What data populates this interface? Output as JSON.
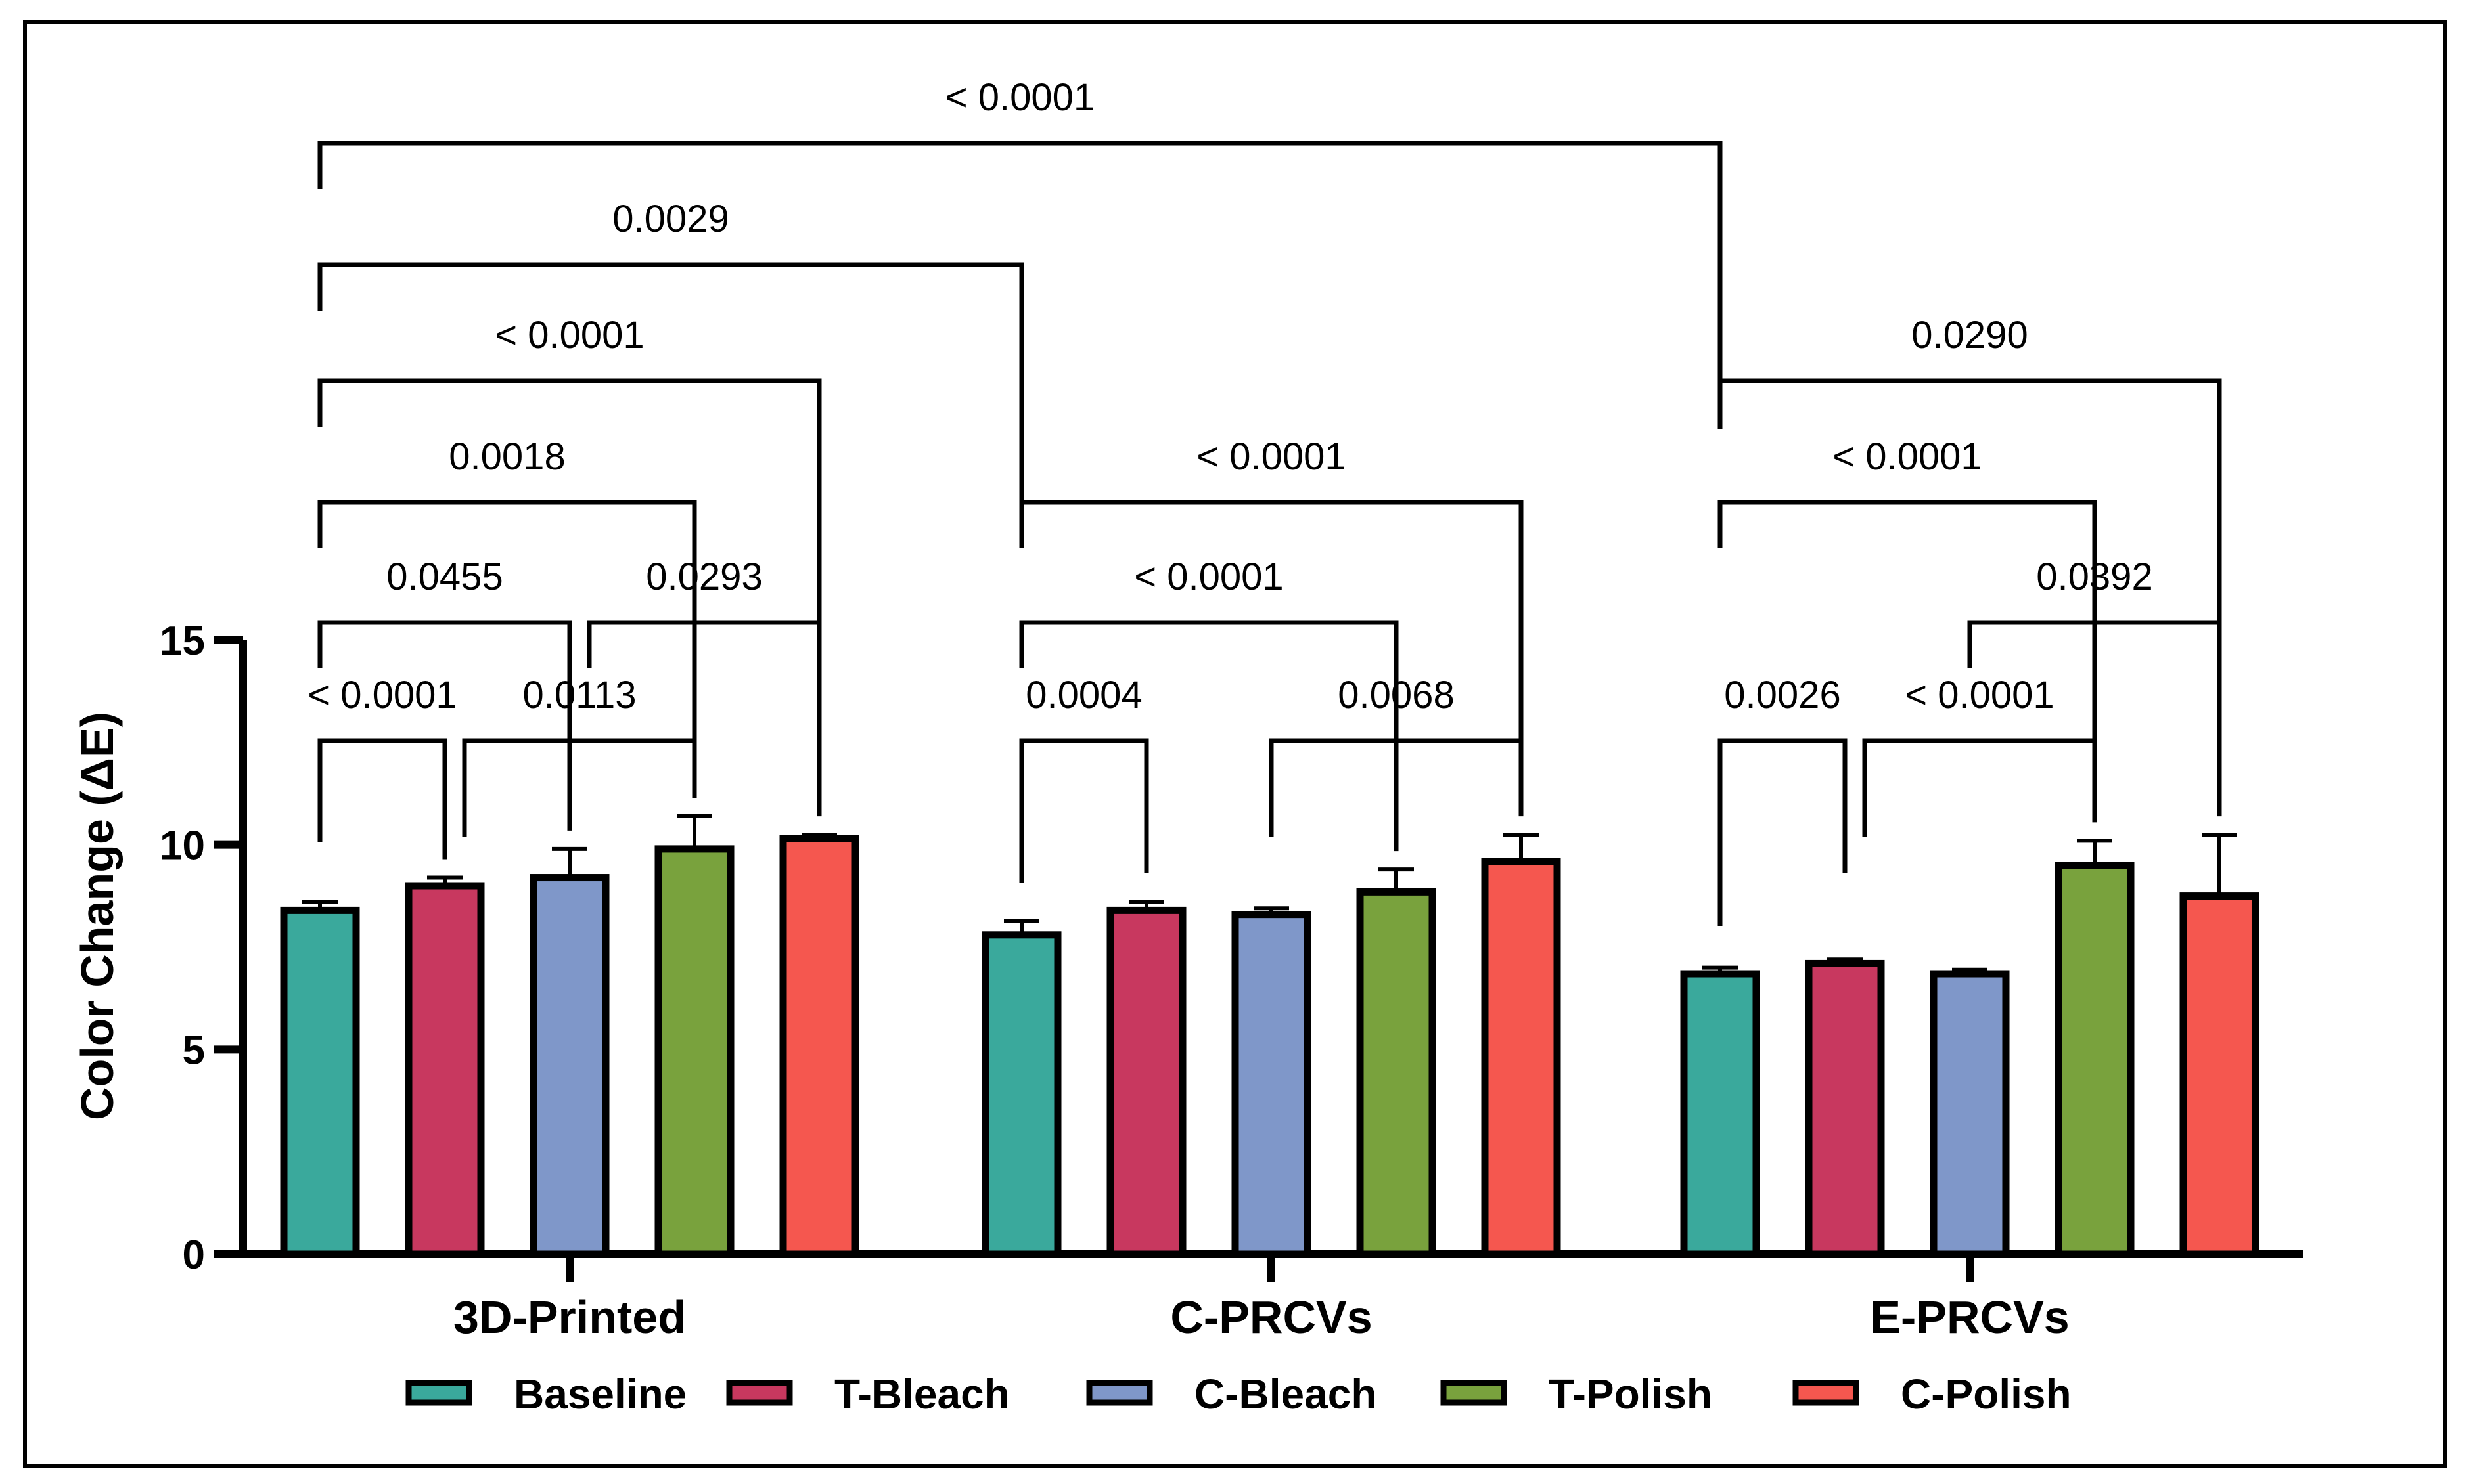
{
  "chart_data": {
    "type": "bar",
    "ylabel": "Color Change (ΔE)",
    "xlabel": "",
    "ylim": [
      0,
      15
    ],
    "yticks": [
      "0",
      "5",
      "10",
      "15"
    ],
    "categories": [
      "3D-Printed",
      "C-PRCVs",
      "E-PRCVs"
    ],
    "series": [
      {
        "name": "Baseline",
        "color": "#3aa99c",
        "values": [
          8.4,
          7.8,
          6.85
        ],
        "errors": [
          0.2,
          0.35,
          0.15
        ]
      },
      {
        "name": "T-Bleach",
        "color": "#c8385f",
        "values": [
          9.0,
          8.4,
          7.1
        ],
        "errors": [
          0.2,
          0.2,
          0.1
        ]
      },
      {
        "name": "C-Bleach",
        "color": "#7f97c9",
        "values": [
          9.2,
          8.3,
          6.85
        ],
        "errors": [
          0.7,
          0.15,
          0.1
        ]
      },
      {
        "name": "T-Polish",
        "color": "#79a23d",
        "values": [
          9.9,
          8.85,
          9.5
        ],
        "errors": [
          0.8,
          0.55,
          0.6
        ]
      },
      {
        "name": "C-Polish",
        "color": "#f5574f",
        "values": [
          10.15,
          9.6,
          8.75
        ],
        "errors": [
          0.1,
          0.65,
          1.5
        ]
      }
    ],
    "comparisons": [
      {
        "label": "< 0.0001",
        "from": [
          0,
          0
        ],
        "to": [
          2,
          0
        ],
        "level": 9
      },
      {
        "label": "0.0029",
        "from": [
          0,
          0
        ],
        "to": [
          1,
          0
        ],
        "level": 8
      },
      {
        "label": "< 0.0001",
        "from": [
          0,
          0
        ],
        "to": [
          0,
          4
        ],
        "level": 7
      },
      {
        "label": "0.0018",
        "from": [
          0,
          0
        ],
        "to": [
          0,
          3
        ],
        "level": 6
      },
      {
        "label": "0.0455",
        "from": [
          0,
          0
        ],
        "to": [
          0,
          2
        ],
        "level": 5
      },
      {
        "label": "0.0293",
        "from": [
          0,
          2
        ],
        "to": [
          0,
          4
        ],
        "level": 5
      },
      {
        "label": "< 0.0001",
        "from": [
          0,
          0
        ],
        "to": [
          0,
          1
        ],
        "level": 4
      },
      {
        "label": "0.0113",
        "from": [
          0,
          1
        ],
        "to": [
          0,
          3
        ],
        "level": 4
      },
      {
        "label": "< 0.0001",
        "from": [
          1,
          0
        ],
        "to": [
          1,
          4
        ],
        "level": 6
      },
      {
        "label": "< 0.0001",
        "from": [
          1,
          0
        ],
        "to": [
          1,
          3
        ],
        "level": 5
      },
      {
        "label": "0.0004",
        "from": [
          1,
          0
        ],
        "to": [
          1,
          1
        ],
        "level": 4
      },
      {
        "label": "0.0068",
        "from": [
          1,
          2
        ],
        "to": [
          1,
          4
        ],
        "level": 4
      },
      {
        "label": "0.0290",
        "from": [
          2,
          0
        ],
        "to": [
          2,
          4
        ],
        "level": 7
      },
      {
        "label": "< 0.0001",
        "from": [
          2,
          0
        ],
        "to": [
          2,
          3
        ],
        "level": 6
      },
      {
        "label": "0.0392",
        "from": [
          2,
          2
        ],
        "to": [
          2,
          4
        ],
        "level": 5
      },
      {
        "label": "0.0026",
        "from": [
          2,
          0
        ],
        "to": [
          2,
          1
        ],
        "level": 4
      },
      {
        "label": "< 0.0001",
        "from": [
          2,
          1
        ],
        "to": [
          2,
          3
        ],
        "level": 4
      }
    ]
  }
}
